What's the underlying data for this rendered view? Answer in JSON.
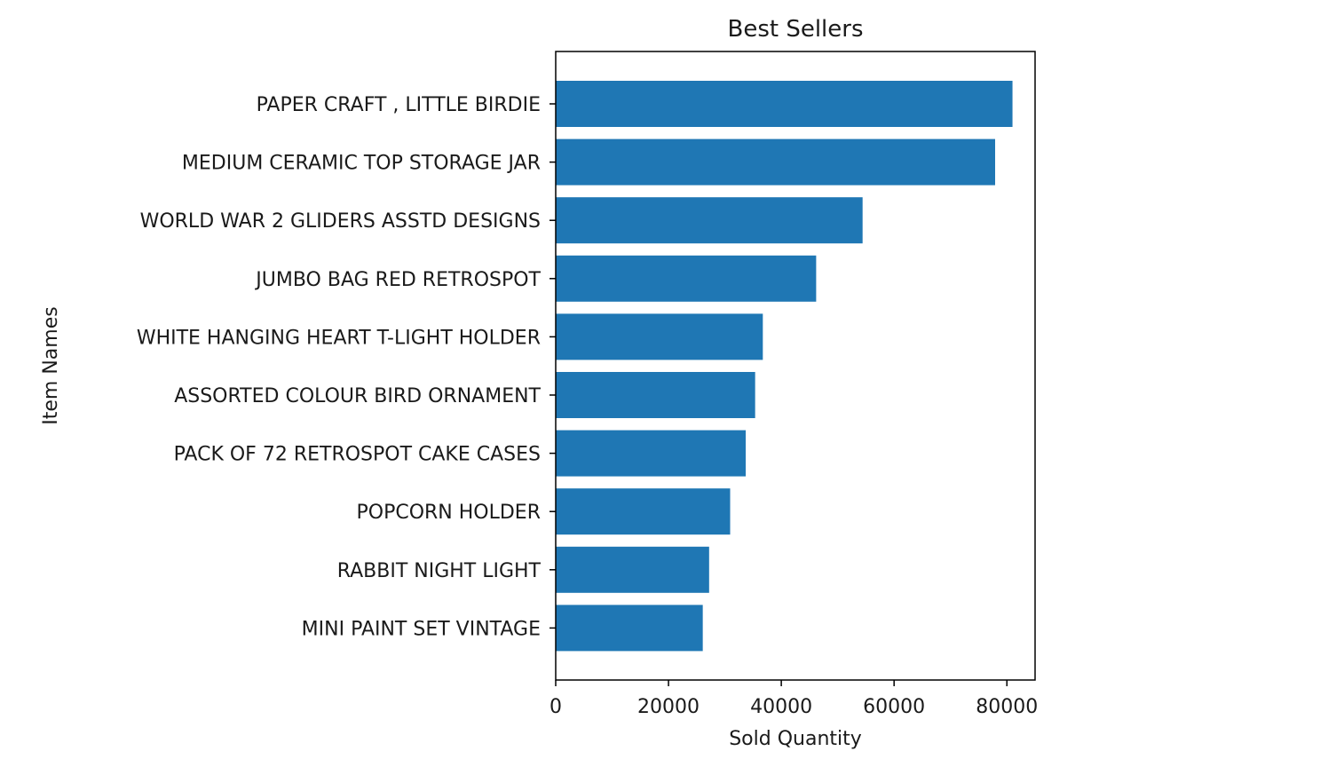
{
  "chart_data": {
    "type": "bar",
    "orientation": "horizontal",
    "title": "Best Sellers",
    "xlabel": "Sold Quantity",
    "ylabel": "Item Names",
    "xlim": [
      0,
      85000
    ],
    "xticks": [
      0,
      20000,
      40000,
      60000,
      80000
    ],
    "xtick_labels": [
      "0",
      "20000",
      "40000",
      "60000",
      "80000"
    ],
    "grid": false,
    "legend": "none",
    "bar_color": "#1f77b4",
    "categories": [
      "PAPER CRAFT , LITTLE BIRDIE",
      "MEDIUM CERAMIC TOP STORAGE JAR",
      "WORLD WAR 2 GLIDERS ASSTD DESIGNS",
      "JUMBO BAG RED RETROSPOT",
      "WHITE HANGING HEART T-LIGHT HOLDER",
      "ASSORTED COLOUR BIRD ORNAMENT",
      "PACK OF 72 RETROSPOT CAKE CASES",
      "POPCORN HOLDER",
      "RABBIT NIGHT LIGHT",
      "MINI PAINT SET VINTAGE"
    ],
    "values": [
      80995,
      77916,
      54415,
      46181,
      36725,
      35362,
      33693,
      30931,
      27202,
      26076
    ]
  }
}
